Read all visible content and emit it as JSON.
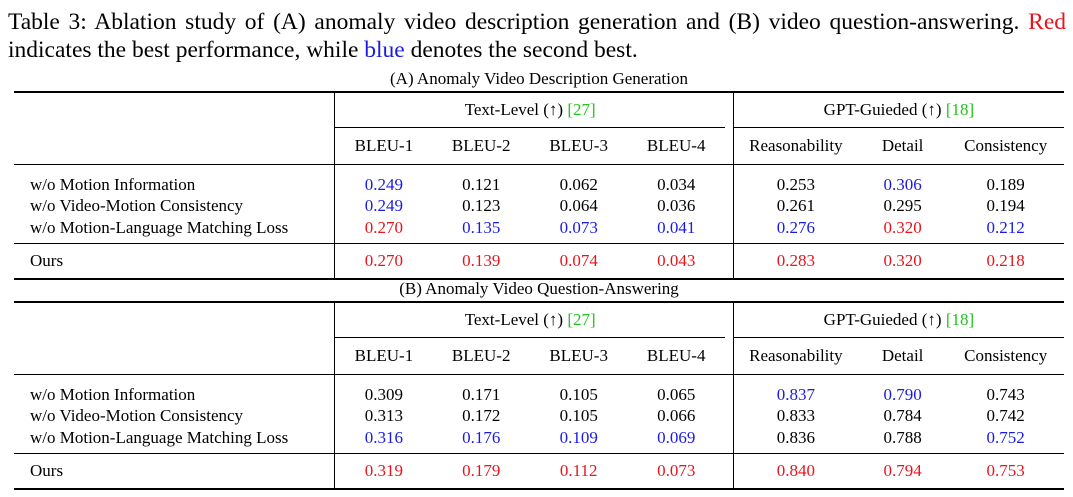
{
  "caption": {
    "prefix": "Table 3:  Ablation study of (A) anomaly video description generation and (B) video question-answering. ",
    "red_word": "Red",
    "middle": " indicates the best performance, while ",
    "blue_word": "blue",
    "suffix": " denotes the second best."
  },
  "colors": {
    "best": "#e8141c",
    "second": "#1a1ae6",
    "citation": "#22c41e"
  },
  "group_headers": {
    "text_level": "Text-Level (↑) ",
    "text_level_ref": "[27]",
    "gpt_guided": "GPT-Guieded (↑) ",
    "gpt_guided_ref": "[18]"
  },
  "columns": [
    "BLEU-1",
    "BLEU-2",
    "BLEU-3",
    "BLEU-4",
    "Reasonability",
    "Detail",
    "Consistency"
  ],
  "sections": [
    {
      "title": "(A) Anomaly Video Description Generation",
      "rows": [
        {
          "name": "w/o Motion Information",
          "values": [
            "0.249",
            "0.121",
            "0.062",
            "0.034",
            "0.253",
            "0.306",
            "0.189"
          ],
          "marks": [
            "second",
            "",
            "",
            "",
            "",
            "second",
            ""
          ]
        },
        {
          "name": "w/o Video-Motion Consistency",
          "values": [
            "0.249",
            "0.123",
            "0.064",
            "0.036",
            "0.261",
            "0.295",
            "0.194"
          ],
          "marks": [
            "second",
            "",
            "",
            "",
            "",
            "",
            ""
          ]
        },
        {
          "name": "w/o Motion-Language Matching Loss",
          "values": [
            "0.270",
            "0.135",
            "0.073",
            "0.041",
            "0.276",
            "0.320",
            "0.212"
          ],
          "marks": [
            "best",
            "second",
            "second",
            "second",
            "second",
            "best",
            "second"
          ]
        }
      ],
      "ours": {
        "name": "Ours",
        "values": [
          "0.270",
          "0.139",
          "0.074",
          "0.043",
          "0.283",
          "0.320",
          "0.218"
        ],
        "marks": [
          "best",
          "best",
          "best",
          "best",
          "best",
          "best",
          "best"
        ]
      }
    },
    {
      "title": "(B) Anomaly Video Question-Answering",
      "rows": [
        {
          "name": "w/o Motion Information",
          "values": [
            "0.309",
            "0.171",
            "0.105",
            "0.065",
            "0.837",
            "0.790",
            "0.743"
          ],
          "marks": [
            "",
            "",
            "",
            "",
            "second",
            "second",
            ""
          ]
        },
        {
          "name": "w/o Video-Motion Consistency",
          "values": [
            "0.313",
            "0.172",
            "0.105",
            "0.066",
            "0.833",
            "0.784",
            "0.742"
          ],
          "marks": [
            "",
            "",
            "",
            "",
            "",
            "",
            ""
          ]
        },
        {
          "name": "w/o Motion-Language Matching Loss",
          "values": [
            "0.316",
            "0.176",
            "0.109",
            "0.069",
            "0.836",
            "0.788",
            "0.752"
          ],
          "marks": [
            "second",
            "second",
            "second",
            "second",
            "",
            "",
            "second"
          ]
        }
      ],
      "ours": {
        "name": "Ours",
        "values": [
          "0.319",
          "0.179",
          "0.112",
          "0.073",
          "0.840",
          "0.794",
          "0.753"
        ],
        "marks": [
          "best",
          "best",
          "best",
          "best",
          "best",
          "best",
          "best"
        ]
      }
    }
  ]
}
